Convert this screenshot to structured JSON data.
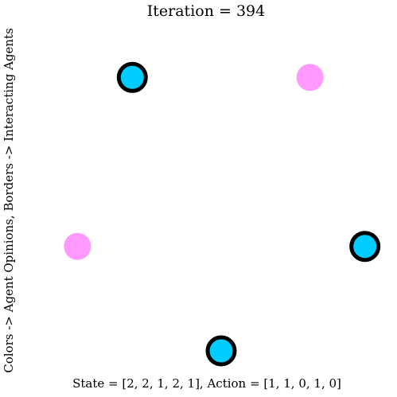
{
  "chart_data": {
    "type": "scatter",
    "title": "Iteration = 394",
    "ylabel": "Colors -> Agent Opinions, Borders -> Interacting Agents",
    "xlabel": "State = [2, 2, 1, 2, 1], Action = [1, 1, 0, 1, 0]",
    "grid": false,
    "axes_visible": false,
    "colors": {
      "opinion_2": "#00ccff",
      "opinion_1": "#ff99ff",
      "border": "#000000"
    },
    "agents": [
      {
        "id": 0,
        "state": 2,
        "action": 1,
        "color": "#00ccff"
      },
      {
        "id": 1,
        "state": 2,
        "action": 1,
        "color": "#00ccff"
      },
      {
        "id": 2,
        "state": 1,
        "action": 0,
        "color": "#ff99ff"
      },
      {
        "id": 3,
        "state": 2,
        "action": 1,
        "color": "#00ccff"
      },
      {
        "id": 4,
        "state": 1,
        "action": 0,
        "color": "#ff99ff"
      }
    ]
  }
}
